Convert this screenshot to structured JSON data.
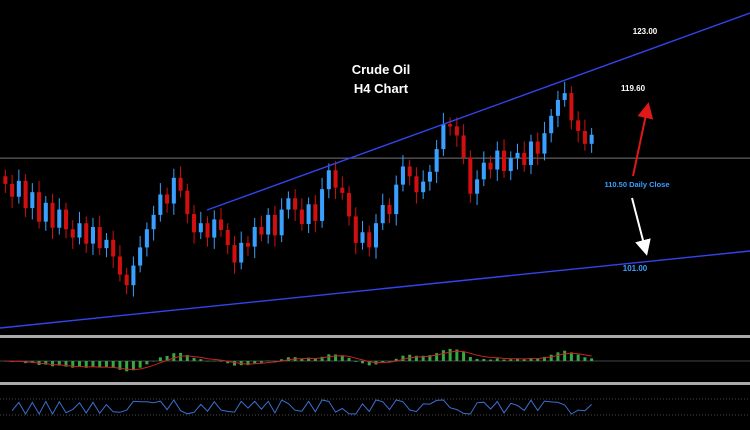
{
  "chart_data": {
    "type": "candlestick",
    "title_line1": "Crude Oil",
    "title_line2": "H4 Chart",
    "colors": {
      "background": "#000000",
      "bull": "#3aa0ff",
      "bear": "#d01010",
      "trendline": "#3344ee",
      "support_resistance": "#777777",
      "label_blue": "#3aa0ff",
      "label_white": "#ffffff",
      "arrow_up": "#e01818",
      "arrow_down": "#ffffff",
      "macd_hist": "#33aa44",
      "signal_line": "#cc2222",
      "rsi_line": "#3a70d0",
      "panel_separator": "#aaaaaa"
    },
    "ylim": [
      94,
      126
    ],
    "close_sequence": [
      112.0,
      110.3,
      112.4,
      108.8,
      110.9,
      107.0,
      109.5,
      106.2,
      108.6,
      106.0,
      104.9,
      106.8,
      104.1,
      106.3,
      103.5,
      104.6,
      102.4,
      100.0,
      98.6,
      101.2,
      103.6,
      106.0,
      107.9,
      110.6,
      109.4,
      112.8,
      111.1,
      108.0,
      105.6,
      106.8,
      104.9,
      107.3,
      105.9,
      103.9,
      101.6,
      104.2,
      103.7,
      106.3,
      105.3,
      107.9,
      105.2,
      108.6,
      110.1,
      108.6,
      106.7,
      109.3,
      107.1,
      111.3,
      113.8,
      111.5,
      110.8,
      107.7,
      104.2,
      105.6,
      103.6,
      106.8,
      109.2,
      108.0,
      111.9,
      114.3,
      113.0,
      110.9,
      112.3,
      113.6,
      116.6,
      119.9,
      119.6,
      118.4,
      115.5,
      110.7,
      112.6,
      114.8,
      113.9,
      116.4,
      113.7,
      115.4,
      116.1,
      114.5,
      117.6,
      116.0,
      118.7,
      121.0,
      123.1,
      124.0,
      120.4,
      119.0,
      117.3,
      118.5
    ],
    "price_labels": {
      "upper": "123.00",
      "mid": "119.60",
      "daily_close": "110.50 Daily Close",
      "lower": "101.00"
    },
    "horizontal_level": 115.4,
    "indicators": [
      "MACD",
      "RSI"
    ]
  }
}
